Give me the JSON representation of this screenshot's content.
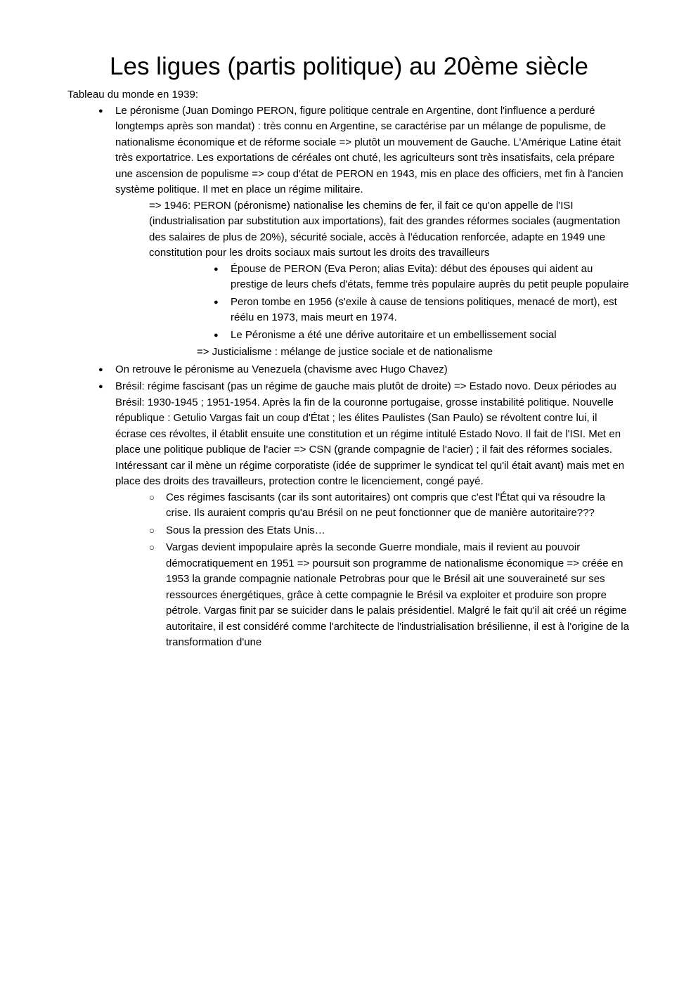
{
  "title": "Les ligues (partis politique) au 20ème siècle",
  "intro": "Tableau du monde en 1939:",
  "bullets": {
    "b1": "Le péronisme (Juan Domingo PERON, figure politique centrale en Argentine, dont l'influence a perduré longtemps après son mandat) : très connu en Argentine, se caractérise par un mélange de populisme, de nationalisme économique et de réforme sociale => plutôt un mouvement de Gauche. L'Amérique Latine était très exportatrice. Les exportations de céréales ont chuté, les agriculteurs sont très insatisfaits, cela prépare une ascension de populisme => coup d'état de PERON en 1943, mis en place des officiers, met fin à l'ancien système politique. Il met en place un régime militaire.",
    "b1_sub": "=> 1946: PERON (péronisme) nationalise les chemins de fer, il fait ce qu'on appelle de l'ISI (industrialisation par substitution aux importations), fait des grandes réformes sociales (augmentation des salaires de plus de 20%), sécurité sociale, accès à l'éducation renforcée, adapte en 1949 une constitution pour les droits sociaux mais surtout les droits des travailleurs",
    "b1_s1": "Épouse de PERON (Eva Peron; alias Evita): début des épouses qui aident au prestige de leurs chefs d'états, femme très populaire auprès du petit peuple populaire",
    "b1_s2": "Peron tombe en 1956 (s'exile à cause de tensions politiques, menacé de mort), est réélu en 1973, mais meurt en 1974.",
    "b1_s3": "Le Péronisme a été une dérive autoritaire et un embellissement social",
    "b1_arrow": "=> Justicialisme : mélange de justice sociale et de nationalisme",
    "b2": "On retrouve le péronisme au Venezuela (chavisme avec Hugo Chavez)",
    "b3": "Brésil: régime fascisant (pas un régime de gauche mais plutôt de droite) => Estado novo. Deux périodes au Brésil: 1930-1945 ; 1951-1954. Après la fin de la couronne portugaise, grosse instabilité politique. Nouvelle république : Getulio Vargas fait un coup d'État ; les élites Paulistes (San Paulo) se révoltent contre lui, il écrase ces révoltes, il établit ensuite une constitution et un régime intitulé Estado Novo. Il fait de l'ISI. Met en place une politique publique de l'acier => CSN (grande compagnie de l'acier) ; il fait des réformes sociales. Intéressant car il mène un régime corporatiste (idée de supprimer le syndicat tel qu'il était avant) mais met en place des droits des travailleurs, protection contre le licenciement, congé payé.",
    "b3_c1": "Ces régimes fascisants (car ils sont autoritaires) ont compris que c'est l'État qui va résoudre la crise. Ils auraient compris qu'au Brésil on ne peut fonctionner que de manière autoritaire???",
    "b3_c2": "Sous la pression des Etats Unis…",
    "b3_c3": "Vargas devient impopulaire après la seconde Guerre mondiale, mais il revient au pouvoir démocratiquement en 1951 => poursuit son programme de nationalisme économique => créée en 1953 la grande compagnie nationale Petrobras pour que le Brésil ait une souveraineté sur ses ressources énergétiques, grâce à cette compagnie le Brésil va exploiter et produire son propre pétrole. Vargas finit par se suicider dans le palais présidentiel. Malgré le fait qu'il ait créé un régime autoritaire, il est considéré comme l'architecte de l'industrialisation brésilienne, il est à l'origine de la transformation d'une"
  }
}
